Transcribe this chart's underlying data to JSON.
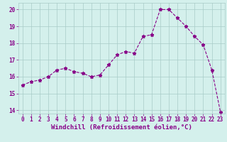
{
  "x": [
    0,
    1,
    2,
    3,
    4,
    5,
    6,
    7,
    8,
    9,
    10,
    11,
    12,
    13,
    14,
    15,
    16,
    17,
    18,
    19,
    20,
    21,
    22,
    23
  ],
  "y": [
    15.5,
    15.7,
    15.8,
    16.0,
    16.4,
    16.5,
    16.3,
    16.2,
    16.0,
    16.1,
    16.7,
    17.3,
    17.5,
    17.4,
    18.4,
    18.5,
    20.0,
    20.0,
    19.5,
    19.0,
    18.4,
    17.9,
    16.4,
    13.9
  ],
  "line_color": "#880088",
  "marker": "*",
  "marker_size": 3.5,
  "bg_color": "#d4f0ec",
  "grid_color": "#a8ccc8",
  "xlabel": "Windchill (Refroidissement éolien,°C)",
  "xlabel_color": "#880088",
  "ylim": [
    13.8,
    20.4
  ],
  "xlim": [
    -0.5,
    23.5
  ],
  "yticks": [
    14,
    15,
    16,
    17,
    18,
    19,
    20
  ],
  "xticks": [
    0,
    1,
    2,
    3,
    4,
    5,
    6,
    7,
    8,
    9,
    10,
    11,
    12,
    13,
    14,
    15,
    16,
    17,
    18,
    19,
    20,
    21,
    22,
    23
  ],
  "tick_color": "#880088",
  "tick_fontsize": 5.5,
  "xlabel_fontsize": 6.5
}
